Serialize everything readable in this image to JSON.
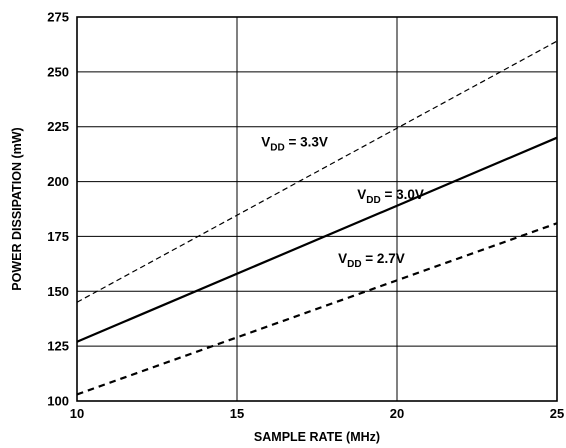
{
  "chart_data": {
    "type": "line",
    "title": "",
    "xlabel": "SAMPLE RATE (MHz)",
    "ylabel": "POWER DISSIPATION (mW)",
    "xlim": [
      10,
      25
    ],
    "ylim": [
      100,
      275
    ],
    "xticks": [
      "10",
      "15",
      "20",
      "25"
    ],
    "yticks": [
      "100",
      "125",
      "150",
      "175",
      "200",
      "225",
      "250",
      "275"
    ],
    "grid": true,
    "series": [
      {
        "name": "V_DD = 3.3V",
        "label": {
          "prefix": "V",
          "sub": "DD",
          "suffix": " = 3.3V"
        },
        "style": "dashed-thin",
        "x": [
          10,
          25
        ],
        "y": [
          145,
          264
        ],
        "label_at": {
          "x": 16.8,
          "y": 216
        }
      },
      {
        "name": "V_DD = 3.0V",
        "label": {
          "prefix": "V",
          "sub": "DD",
          "suffix": " = 3.0V"
        },
        "style": "solid",
        "x": [
          10,
          25
        ],
        "y": [
          127,
          220
        ],
        "label_at": {
          "x": 19.8,
          "y": 192
        }
      },
      {
        "name": "V_DD = 2.7V",
        "label": {
          "prefix": "V",
          "sub": "DD",
          "suffix": " = 2.7V"
        },
        "style": "dashed-thick",
        "x": [
          10,
          25
        ],
        "y": [
          103,
          181
        ],
        "label_at": {
          "x": 19.2,
          "y": 163
        }
      }
    ]
  },
  "colors": {
    "line": "#000000",
    "grid": "#000000",
    "background": "#ffffff"
  }
}
